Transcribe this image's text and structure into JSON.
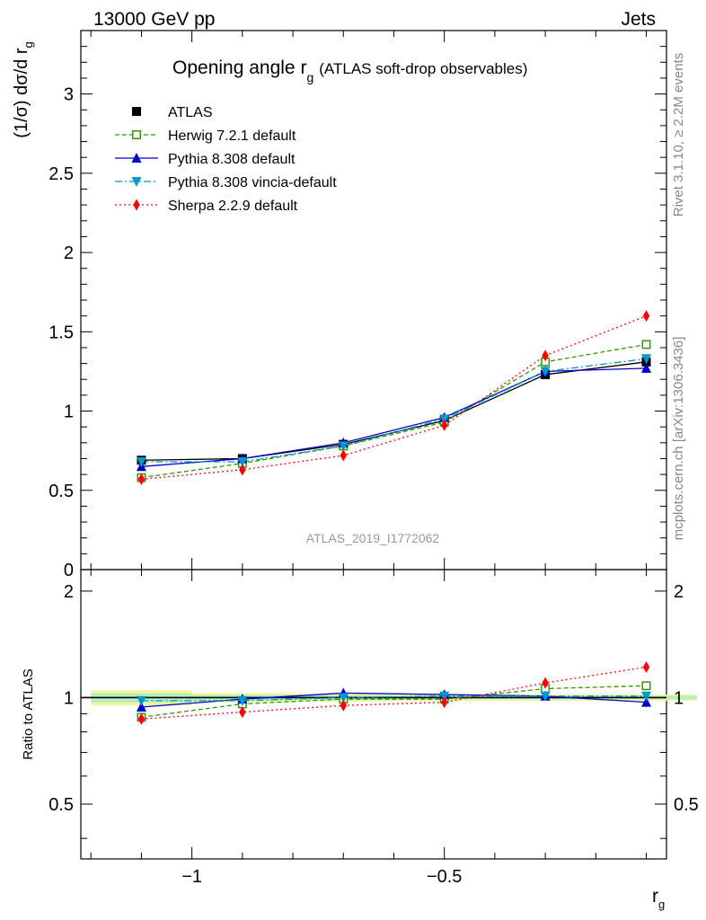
{
  "header": {
    "energy_label": "13000 GeV pp",
    "process_label": "Jets",
    "rivet_label": "Rivet 3.1.10, ≥ 2.2M events",
    "mcplots_label": "mcplots.cern.ch [arXiv:1306.3436]"
  },
  "chart_data": [
    {
      "id": "main",
      "type": "line",
      "title": "Opening angle r",
      "title_sub": "g",
      "title_note": "(ATLAS soft-drop observables)",
      "ylabel": "(1/σ) dσ/d r",
      "ylabel_sub": "g",
      "watermark": "ATLAS_2019_I1772062",
      "xlim": [
        -1.22,
        -0.06
      ],
      "ylim": [
        0,
        3.4
      ],
      "y_ticks": [
        0,
        0.5,
        1,
        1.5,
        2,
        2.5,
        3
      ],
      "y_tick_labels": [
        "0",
        "0.5",
        "1",
        "1.5",
        "2",
        "2.5",
        "3"
      ],
      "x": [
        -1.1,
        -0.9,
        -0.7,
        -0.5,
        -0.3,
        -0.1
      ],
      "series": [
        {
          "name": "ATLAS",
          "color": "#000000",
          "marker": "square",
          "values": [
            0.69,
            0.7,
            0.79,
            0.94,
            1.23,
            1.31
          ]
        },
        {
          "name": "Herwig 7.2.1 default",
          "color": "#339900",
          "marker": "open-square",
          "dash": "5,3",
          "values": [
            0.58,
            0.67,
            0.78,
            0.93,
            1.31,
            1.42
          ]
        },
        {
          "name": "Pythia 8.308 default",
          "color": "#0000cc",
          "marker": "triangle-up",
          "values": [
            0.65,
            0.7,
            0.8,
            0.96,
            1.25,
            1.27
          ]
        },
        {
          "name": "Pythia 8.308 vincia-default",
          "color": "#0099cc",
          "marker": "triangle-down",
          "dash": "8,3,2,3",
          "values": [
            0.68,
            0.68,
            0.78,
            0.95,
            1.25,
            1.33
          ]
        },
        {
          "name": "Sherpa 2.2.9 default",
          "color": "#ff0000",
          "marker": "diamond",
          "dash": "2,3",
          "values": [
            0.57,
            0.63,
            0.72,
            0.91,
            1.35,
            1.6
          ]
        }
      ]
    },
    {
      "id": "ratio",
      "type": "line",
      "ylabel": "Ratio to ATLAS",
      "xlabel": "r",
      "xlabel_sub": "g",
      "xlim": [
        -1.22,
        -0.06
      ],
      "ylim": [
        0.35,
        2.3
      ],
      "y_ticks": [
        0.5,
        1,
        2
      ],
      "y_tick_labels": [
        "0.5",
        "1",
        "2"
      ],
      "x_ticks": [
        -1,
        -0.5
      ],
      "x_tick_labels": [
        "−1",
        "−0.5"
      ],
      "x": [
        -1.1,
        -0.9,
        -0.7,
        -0.5,
        -0.3,
        -0.1
      ],
      "uncertainty_band": {
        "lower": [
          0.95,
          0.97,
          0.975,
          0.98,
          0.98,
          0.98
        ],
        "upper": [
          1.05,
          1.03,
          1.025,
          1.02,
          1.02,
          1.02
        ]
      },
      "series": [
        {
          "name": "Herwig 7.2.1 default",
          "color": "#339900",
          "marker": "open-square",
          "dash": "5,3",
          "values": [
            0.88,
            0.96,
            0.99,
            0.99,
            1.06,
            1.08
          ]
        },
        {
          "name": "Pythia 8.308 default",
          "color": "#0000cc",
          "marker": "triangle-up",
          "values": [
            0.94,
            0.99,
            1.03,
            1.02,
            1.01,
            0.97
          ]
        },
        {
          "name": "Pythia 8.308 vincia-default",
          "color": "#0099cc",
          "marker": "triangle-down",
          "dash": "8,3,2,3",
          "values": [
            0.98,
            0.98,
            1.0,
            1.01,
            1.01,
            1.01
          ]
        },
        {
          "name": "Sherpa 2.2.9 default",
          "color": "#ff0000",
          "marker": "diamond",
          "dash": "2,3",
          "values": [
            0.87,
            0.91,
            0.95,
            0.97,
            1.1,
            1.22
          ]
        }
      ]
    }
  ]
}
